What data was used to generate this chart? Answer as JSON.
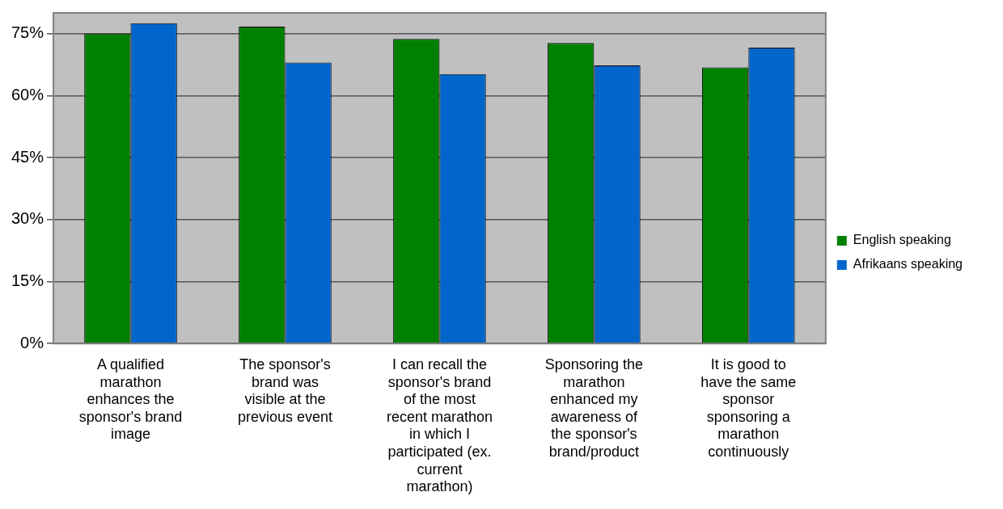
{
  "chart_data": {
    "type": "bar",
    "categories": [
      "A qualified marathon enhances the sponsor's brand image",
      "The sponsor's brand was visible at the previous event",
      "I can recall the sponsor's brand of the most recent marathon in which I participated (ex. current marathon)",
      "Sponsoring the marathon enhanced my awareness of the sponsor's brand/product",
      "It is good to have the same sponsor sponsoring a marathon continuously"
    ],
    "series": [
      {
        "name": "English speaking",
        "color": "#008000",
        "values": [
          75,
          76.7,
          73.7,
          72.7,
          66.8
        ]
      },
      {
        "name": "Afrikaans speaking",
        "color": "#0066cc",
        "values": [
          77.5,
          68,
          65.2,
          67.3,
          71.6
        ]
      }
    ],
    "ylim": [
      0,
      80
    ],
    "yticks": [
      {
        "value": 0,
        "label": "0%"
      },
      {
        "value": 15,
        "label": "15%"
      },
      {
        "value": 30,
        "label": "30%"
      },
      {
        "value": 45,
        "label": "45%"
      },
      {
        "value": 60,
        "label": "60%"
      },
      {
        "value": 75,
        "label": "75%"
      }
    ],
    "grid": "y",
    "legend": "right"
  }
}
